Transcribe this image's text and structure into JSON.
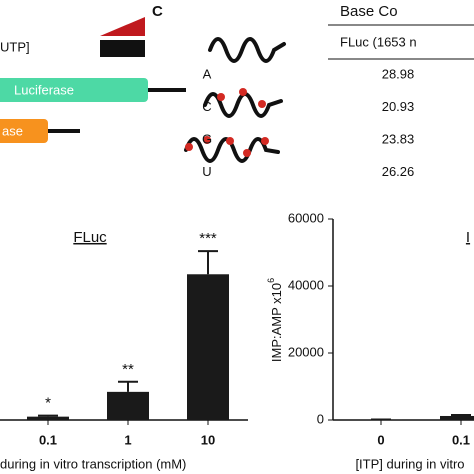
{
  "diagram": {
    "ratio_label": "UTP]",
    "constructs": [
      "Luciferase",
      "ase"
    ]
  },
  "table": {
    "panel": "C",
    "header": "Base Co",
    "subheader": "FLuc (1653 n",
    "rows": [
      [
        "A",
        28.98
      ],
      [
        "C",
        20.93
      ],
      [
        "G",
        23.83
      ],
      [
        "U",
        26.26
      ]
    ]
  },
  "chart_data": [
    {
      "type": "bar",
      "title": "FLuc",
      "categories": [
        "0.1",
        "1",
        "10"
      ],
      "values": [
        1000,
        8400,
        43500
      ],
      "errors": [
        300,
        3000,
        6900
      ],
      "annotations": [
        "*",
        "**",
        "***"
      ],
      "x_label": "during in vitro transcription (mM)",
      "ylim": [
        0,
        60000
      ],
      "color": "#1a1a1a"
    },
    {
      "type": "bar",
      "title": "I",
      "categories": [
        "0",
        "0.1"
      ],
      "values": [
        100,
        1200
      ],
      "errors": [
        50,
        300
      ],
      "x_label": "[ITP] during in vitro",
      "y_label": "IMP:AMP x10",
      "y_label_exponent": "6",
      "ylim": [
        0,
        60000
      ],
      "yticks": [
        0,
        20000,
        40000,
        60000
      ],
      "color": "#1a1a1a"
    }
  ]
}
